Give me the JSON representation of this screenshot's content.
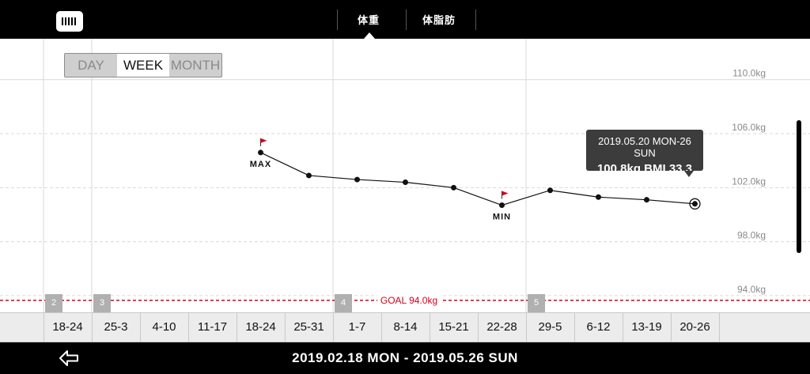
{
  "header": {
    "tabs": [
      {
        "label": "体重",
        "active": true
      },
      {
        "label": "体脂肪",
        "active": false
      }
    ]
  },
  "period_toggle": {
    "options": [
      "DAY",
      "WEEK",
      "MONTH"
    ],
    "selected": "WEEK"
  },
  "chart_data": {
    "type": "line",
    "categories": [
      "18-24",
      "25-3",
      "4-10",
      "11-17",
      "18-24",
      "25-31",
      "1-7",
      "8-14",
      "15-21",
      "22-28",
      "29-5",
      "6-12",
      "13-19",
      "20-26"
    ],
    "month_markers": [
      {
        "label": "2",
        "category_index": 0
      },
      {
        "label": "3",
        "category_index": 1
      },
      {
        "label": "4",
        "category_index": 6
      },
      {
        "label": "5",
        "category_index": 10
      }
    ],
    "series": [
      {
        "values": [
          null,
          null,
          null,
          null,
          104.6,
          102.9,
          102.6,
          102.4,
          102.0,
          100.7,
          101.8,
          101.3,
          101.1,
          100.8
        ]
      }
    ],
    "y_ticks": [
      "110.0kg",
      "106.0kg",
      "102.0kg",
      "98.0kg",
      "94.0kg"
    ],
    "y_tick_values": [
      110,
      106,
      102,
      98,
      94
    ],
    "ylim": [
      91.3,
      111.8
    ],
    "goal": {
      "value": 94.0,
      "label": "GOAL 94.0kg",
      "color": "#d0021b"
    },
    "max_marker": {
      "label": "MAX",
      "category_index": 4
    },
    "min_marker": {
      "label": "MIN",
      "category_index": 9
    },
    "flag_color": "#d0021b",
    "grid": true,
    "tooltip": {
      "category_index": 13,
      "line1": "2019.05.20 MON-26 SUN",
      "line2": "100.8kg  BMI 33.3"
    }
  },
  "footer": {
    "date_range": "2019.02.18 MON - 2019.05.26 SUN",
    "back_icon": "back-arrow-icon"
  }
}
